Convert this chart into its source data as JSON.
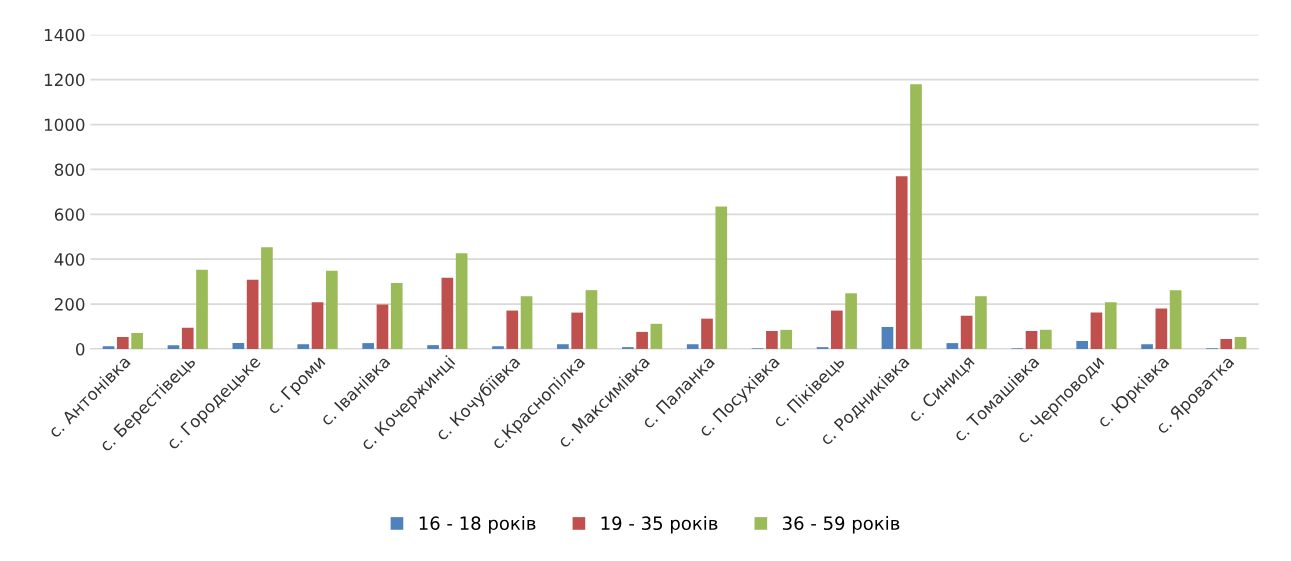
{
  "chart_data": {
    "type": "bar",
    "categories": [
      "с. Антонівка",
      "с. Берестівець",
      "с. Городецьке",
      "с. Громи",
      "с. Іванівка",
      "с. Кочержинці",
      "с. Кочубіївка",
      "с.Краснопілка",
      "с. Максимівка",
      "с. Паланка",
      "с. Посухівка",
      "с. Піківець",
      "с. Родниківка",
      "с. Синиця",
      "с. Томашівка",
      "с. Черповоди",
      "с. Юрківка",
      "с. Яроватка"
    ],
    "series": [
      {
        "name": "16 - 18 років",
        "color": "#4f81bd",
        "values": [
          12,
          17,
          26,
          21,
          26,
          17,
          12,
          21,
          8,
          21,
          3,
          8,
          98,
          26,
          3,
          35,
          21,
          3
        ]
      },
      {
        "name": "19 - 35 років",
        "color": "#c0504d",
        "values": [
          53,
          94,
          308,
          208,
          198,
          317,
          171,
          162,
          76,
          135,
          80,
          171,
          770,
          148,
          80,
          162,
          180,
          44
        ]
      },
      {
        "name": "36 - 59 років",
        "color": "#9bbb59",
        "values": [
          71,
          353,
          453,
          348,
          294,
          426,
          235,
          262,
          112,
          635,
          85,
          248,
          1180,
          235,
          85,
          208,
          262,
          53
        ]
      }
    ],
    "ylim": [
      0,
      1400
    ],
    "yticks": [
      0,
      200,
      400,
      600,
      800,
      1000,
      1200,
      1400
    ],
    "grid": "y",
    "legend": "bottom"
  }
}
